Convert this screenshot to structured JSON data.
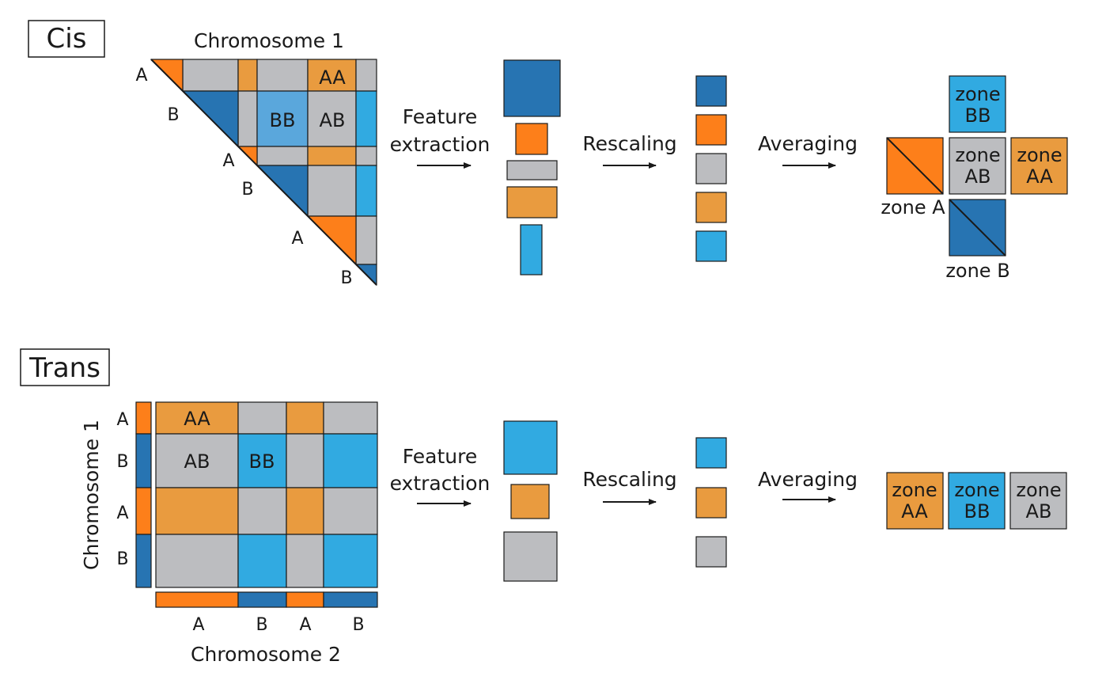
{
  "cis": {
    "title": "Cis",
    "chromosome": "Chromosome 1",
    "diag_labels": [
      "A",
      "B",
      "A",
      "B",
      "A",
      "B"
    ],
    "cells": {
      "aa": "AA",
      "bb": "BB",
      "ab": "AB"
    },
    "feature_label_1": "Feature",
    "feature_label_2": "extraction",
    "rescaling": "Rescaling",
    "averaging": "Averaging",
    "zone_bb": [
      "zone",
      "BB"
    ],
    "zone_ab": [
      "zone",
      "AB"
    ],
    "zone_aa": [
      "zone",
      "AA"
    ],
    "zone_a": "zone A",
    "zone_b": "zone B"
  },
  "trans": {
    "title": "Trans",
    "chromosome_1": "Chromosome 1",
    "chromosome_2": "Chromosome 2",
    "row_labels": [
      "A",
      "B",
      "A",
      "B"
    ],
    "col_labels": [
      "A",
      "B",
      "A",
      "B"
    ],
    "cells": {
      "aa": "AA",
      "ab": "AB",
      "bb": "BB"
    },
    "feature_label_1": "Feature",
    "feature_label_2": "extraction",
    "rescaling": "Rescaling",
    "averaging": "Averaging",
    "zone_aa": [
      "zone",
      "AA"
    ],
    "zone_bb": [
      "zone",
      "BB"
    ],
    "zone_ab": [
      "zone",
      "AB"
    ]
  },
  "colors": {
    "orange": "#fd7f1a",
    "dark_blue": "#2774b2",
    "gray": "#bcbdc0",
    "light_orange": "#e99b3f",
    "light_blue": "#31aae1",
    "mid_blue": "#5aa7dc"
  }
}
